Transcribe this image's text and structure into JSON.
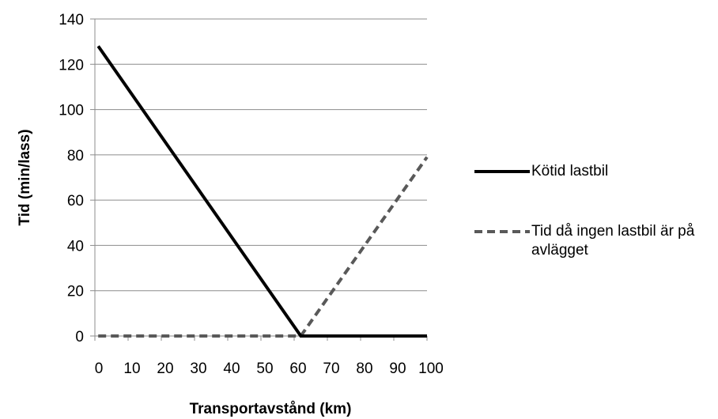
{
  "chart_data": {
    "type": "line",
    "title": "",
    "xlabel": "Transportavstånd (km)",
    "ylabel": "Tid (min/lass)",
    "xlim": [
      0,
      100
    ],
    "ylim": [
      0,
      140
    ],
    "xticks": [
      0,
      10,
      20,
      30,
      40,
      50,
      60,
      70,
      80,
      90,
      100
    ],
    "yticks": [
      0,
      20,
      40,
      60,
      80,
      100,
      120,
      140
    ],
    "grid": "horizontal",
    "legend_position": "right",
    "series": [
      {
        "name": "Kötid lastbil",
        "style": "solid",
        "color": "#000000",
        "x": [
          1,
          62,
          100
        ],
        "y": [
          128,
          0,
          0
        ]
      },
      {
        "name": "Tid då ingen lastbil är på avlägget",
        "style": "dashed",
        "color": "#595959",
        "x": [
          1,
          62,
          100
        ],
        "y": [
          0,
          0,
          79
        ]
      }
    ]
  }
}
